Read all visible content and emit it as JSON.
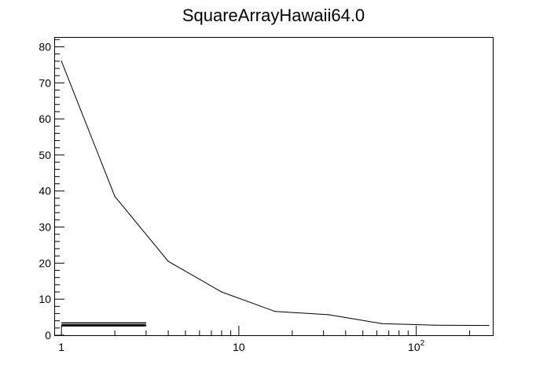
{
  "chart_data": {
    "type": "line",
    "title": "SquareArrayHawaii64.0",
    "xlabel": "",
    "ylabel": "",
    "xscale": "log",
    "xlim": [
      0.92,
      270
    ],
    "ylim": [
      0,
      82.5
    ],
    "grid": false,
    "legend": "none",
    "x_tick_labels": [
      {
        "value": 1,
        "base": "1",
        "exp": ""
      },
      {
        "value": 10,
        "base": "10",
        "exp": ""
      },
      {
        "value": 100,
        "base": "10",
        "exp": "2"
      }
    ],
    "y_tick_labels": [
      "0",
      "10",
      "20",
      "30",
      "40",
      "50",
      "60",
      "70",
      "80"
    ],
    "series": [
      {
        "x": [
          1,
          2,
          4,
          8,
          16,
          32,
          64,
          128,
          256
        ],
        "y": [
          76,
          38.5,
          20.5,
          12,
          6.6,
          5.7,
          3.2,
          2.8,
          2.7
        ],
        "color": "#000000"
      }
    ],
    "extra_segments": [
      {
        "x": [
          1,
          3
        ],
        "y": [
          3.4,
          3.4
        ]
      },
      {
        "x": [
          1,
          3
        ],
        "y": [
          2.9,
          2.9
        ]
      },
      {
        "x": [
          1,
          3
        ],
        "y": [
          2.6,
          2.6
        ]
      }
    ]
  }
}
